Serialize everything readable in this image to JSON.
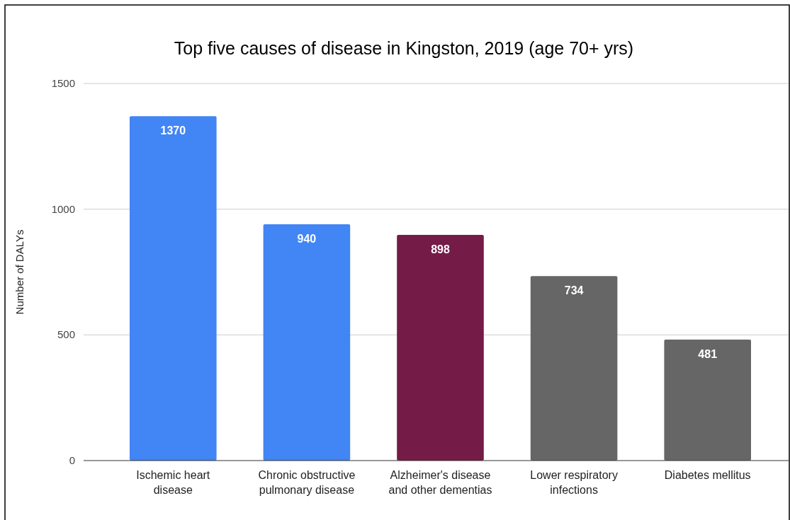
{
  "chart_data": {
    "type": "bar",
    "title": "Top five causes of disease in Kingston, 2019 (age 70+ yrs)",
    "ylabel": "Number of DALYs",
    "categories": [
      "Ischemic heart disease",
      "Chronic obstructive pulmonary disease",
      "Alzheimer's disease and other dementias",
      "Lower respiratory infections",
      "Diabetes mellitus"
    ],
    "values": [
      1370,
      940,
      898,
      734,
      481
    ],
    "colors": [
      "#4285f4",
      "#4285f4",
      "#741b47",
      "#666666",
      "#666666"
    ],
    "ylim": [
      0,
      1500
    ],
    "yticks": [
      0,
      500,
      1000,
      1500
    ],
    "grid": "y",
    "data_labels": true
  }
}
